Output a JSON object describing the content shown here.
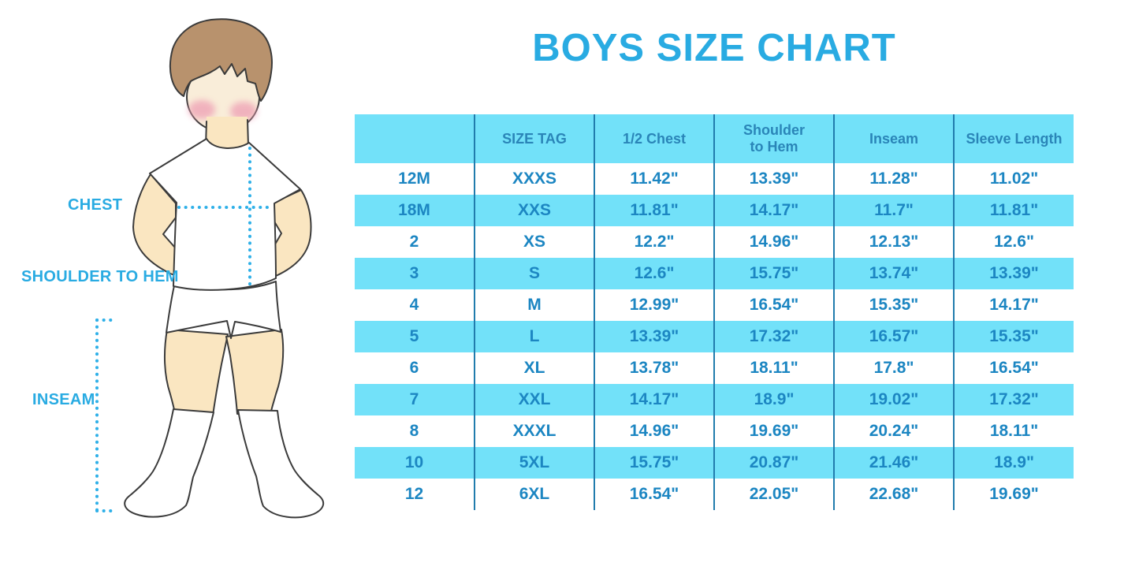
{
  "title": "BOYS SIZE CHART",
  "figure": {
    "description": "Illustration of a boy in white t-shirt, shorts and socks with measurement guide lines",
    "labels": {
      "chest": "CHEST",
      "shoulder_to_hem": "SHOULDER TO HEM",
      "inseam": "INSEAM"
    }
  },
  "table": {
    "columns": [
      "",
      "SIZE TAG",
      "1/2 Chest",
      "Shoulder to Hem",
      "Inseam",
      "Sleeve Length"
    ],
    "rows": [
      [
        "12M",
        "XXXS",
        "11.42\"",
        "13.39\"",
        "11.28\"",
        "11.02\""
      ],
      [
        "18M",
        "XXS",
        "11.81\"",
        "14.17\"",
        "11.7\"",
        "11.81\""
      ],
      [
        "2",
        "XS",
        "12.2\"",
        "14.96\"",
        "12.13\"",
        "12.6\""
      ],
      [
        "3",
        "S",
        "12.6\"",
        "15.75\"",
        "13.74\"",
        "13.39\""
      ],
      [
        "4",
        "M",
        "12.99\"",
        "16.54\"",
        "15.35\"",
        "14.17\""
      ],
      [
        "5",
        "L",
        "13.39\"",
        "17.32\"",
        "16.57\"",
        "15.35\""
      ],
      [
        "6",
        "XL",
        "13.78\"",
        "18.11\"",
        "17.8\"",
        "16.54\""
      ],
      [
        "7",
        "XXL",
        "14.17\"",
        "18.9\"",
        "19.02\"",
        "17.32\""
      ],
      [
        "8",
        "XXXL",
        "14.96\"",
        "19.69\"",
        "20.24\"",
        "18.11\""
      ],
      [
        "10",
        "5XL",
        "15.75\"",
        "20.87\"",
        "21.46\"",
        "18.9\""
      ],
      [
        "12",
        "6XL",
        "16.54\"",
        "22.05\"",
        "22.68\"",
        "19.69\""
      ]
    ]
  },
  "colors": {
    "title_blue": "#29ABE2",
    "label_blue": "#29ABE2",
    "dotted_line": "#2FB0E8",
    "header_bg": "#72E1F9",
    "row_alt_bg": "#72E1F9",
    "row_bg": "#FFFFFF",
    "header_text": "#2A85B8",
    "cell_text": "#1C86C2",
    "divider": "#217CAD",
    "skin": "#FAE6C1",
    "face": "#F9EDD9",
    "hair": "#B8926D",
    "blush": "#EE9FB4",
    "outline": "#3B3B3B",
    "garment": "#FFFFFF",
    "page_bg": "#FFFFFF"
  }
}
